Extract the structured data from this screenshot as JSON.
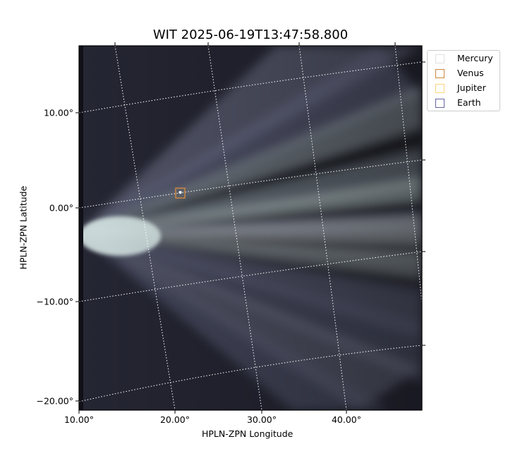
{
  "chart_data": {
    "type": "image",
    "title": "WIT 2025-06-19T13:47:58.800",
    "xlabel": "HPLN-ZPN Longitude",
    "ylabel": "HPLN-ZPN Latitude",
    "xticks": [
      "10.00°",
      "20.00°",
      "30.00°",
      "40.00°"
    ],
    "yticks": [
      "10.00°",
      "0.00°",
      "−10.00°",
      "−20.00°"
    ],
    "grid": true,
    "colormap": "bone",
    "legend_placement": "outside-top-right",
    "legend": [
      {
        "name": "Mercury",
        "color": "#d3d3d3"
      },
      {
        "name": "Venus",
        "color": "#cd853f"
      },
      {
        "name": "Jupiter",
        "color": "#ffa500"
      },
      {
        "name": "Earth",
        "color": "#0000ff"
      }
    ],
    "markers": [
      {
        "name": "Venus",
        "lon": 20.6,
        "lat": 1.6
      }
    ]
  }
}
